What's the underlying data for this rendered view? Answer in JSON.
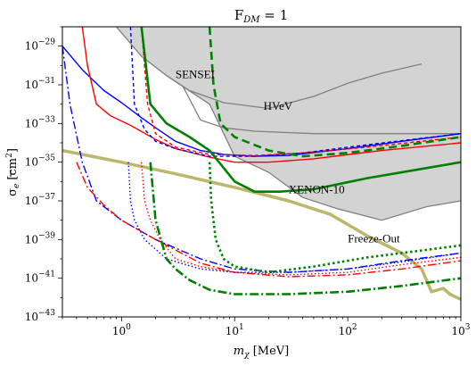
{
  "chart_data": {
    "type": "line",
    "title": "F_DM = 1",
    "title_parts": {
      "main": "F",
      "sub": "DM",
      "rest": " = 1"
    },
    "xlabel_parts": {
      "sym": "m",
      "sub": "χ",
      "unit": " [MeV]"
    },
    "ylabel_parts": {
      "sym": "σ",
      "sub": "e",
      "unit": " [cm",
      "sup": "2",
      "close": "]"
    },
    "x_scale": "log",
    "y_scale": "log",
    "xlim": [
      0.3,
      1000
    ],
    "ylim": [
      1e-43,
      1e-28
    ],
    "grid": false,
    "legend": "none",
    "x_ticks": [
      {
        "value": 1,
        "base": "10",
        "exp": "0"
      },
      {
        "value": 10,
        "base": "10",
        "exp": "1"
      },
      {
        "value": 100,
        "base": "10",
        "exp": "2"
      },
      {
        "value": 1000,
        "base": "10",
        "exp": "3"
      }
    ],
    "y_ticks": [
      {
        "value": 1e-29,
        "base": "10",
        "exp": "−29"
      },
      {
        "value": 1e-31,
        "base": "10",
        "exp": "−31"
      },
      {
        "value": 1e-33,
        "base": "10",
        "exp": "−33"
      },
      {
        "value": 1e-35,
        "base": "10",
        "exp": "−35"
      },
      {
        "value": 1e-37,
        "base": "10",
        "exp": "−37"
      },
      {
        "value": 1e-39,
        "base": "10",
        "exp": "−39"
      },
      {
        "value": 1e-41,
        "base": "10",
        "exp": "−41"
      },
      {
        "value": 1e-43,
        "base": "10",
        "exp": "−43"
      }
    ],
    "excluded_region": {
      "color": "#d3d3d3",
      "edge_color": "#808080",
      "boundary": [
        [
          0.9,
          1e-28
        ],
        [
          1.5,
          3e-30
        ],
        [
          2.5,
          3e-31
        ],
        [
          3.5,
          8e-32
        ],
        [
          6,
          1e-32
        ],
        [
          10,
          2e-35
        ],
        [
          20,
          3e-36
        ],
        [
          40,
          1.5e-37
        ],
        [
          80,
          4e-38
        ],
        [
          200,
          1e-38
        ],
        [
          500,
          5e-38
        ],
        [
          1000,
          1e-37
        ]
      ]
    },
    "experiment_curves": [
      {
        "name": "SENSEI",
        "color": "#808080",
        "points": [
          [
            2.5,
            3e-31
          ],
          [
            4,
            5e-32
          ],
          [
            8,
            1.2e-32
          ],
          [
            20,
            6e-33
          ],
          [
            50,
            2.5e-32
          ],
          [
            100,
            1.2e-31
          ],
          [
            200,
            4e-31
          ],
          [
            450,
            1.2e-30
          ]
        ]
      },
      {
        "name": "HVeV",
        "color": "#808080",
        "points": [
          [
            3.5,
            8e-32
          ],
          [
            5,
            1.5e-33
          ],
          [
            8,
            6e-34
          ],
          [
            15,
            4e-34
          ],
          [
            50,
            3e-34
          ],
          [
            200,
            3e-34
          ],
          [
            1000,
            3e-34
          ]
        ]
      }
    ],
    "annotations": [
      {
        "text": "SENSEI",
        "x": 3.0,
        "y": 2.2e-31
      },
      {
        "text": "HVeV",
        "x": 18,
        "y": 5e-33
      },
      {
        "text": "XENON-10",
        "x": 30,
        "y": 2.5e-37
      },
      {
        "text": "Freeze-Out",
        "x": 100,
        "y": 7e-40
      }
    ],
    "freeze_out": {
      "color": "#bdb76b",
      "points": [
        [
          0.3,
          4e-35
        ],
        [
          1,
          1e-35
        ],
        [
          3,
          2.5e-36
        ],
        [
          10,
          5e-37
        ],
        [
          30,
          1e-37
        ],
        [
          70,
          2e-38
        ],
        [
          150,
          1.5e-39
        ],
        [
          300,
          2e-40
        ],
        [
          450,
          3e-41
        ],
        [
          550,
          2e-42
        ],
        [
          700,
          3e-42
        ],
        [
          800,
          1.5e-42
        ],
        [
          1000,
          8e-43
        ]
      ]
    },
    "series": [
      {
        "name": "",
        "color": "#0000ff",
        "dash": "",
        "width": 1.4,
        "points": [
          [
            0.3,
            1e-29
          ],
          [
            0.45,
            6e-31
          ],
          [
            0.7,
            5e-32
          ],
          [
            1,
            1.2e-32
          ],
          [
            1.5,
            2e-33
          ],
          [
            2,
            6e-34
          ],
          [
            3,
            1.2e-34
          ],
          [
            5,
            4e-35
          ],
          [
            8,
            2.5e-35
          ],
          [
            15,
            2e-35
          ],
          [
            30,
            2.2e-35
          ],
          [
            100,
            5e-35
          ],
          [
            300,
            1.2e-34
          ],
          [
            1000,
            3e-34
          ]
        ]
      },
      {
        "name": "",
        "color": "#ff0000",
        "dash": "",
        "width": 1.4,
        "points": [
          [
            0.45,
            1e-28
          ],
          [
            0.5,
            1e-30
          ],
          [
            0.6,
            1e-32
          ],
          [
            0.8,
            2.5e-33
          ],
          [
            1.2,
            8e-34
          ],
          [
            2,
            1.5e-34
          ],
          [
            3,
            5e-35
          ],
          [
            6,
            1.8e-35
          ],
          [
            10,
            1e-35
          ],
          [
            20,
            1e-35
          ],
          [
            50,
            1.5e-35
          ],
          [
            200,
            4e-35
          ],
          [
            1000,
            1e-34
          ]
        ]
      },
      {
        "name": "",
        "color": "#0000ff",
        "dash": "4,3",
        "width": 1.4,
        "points": [
          [
            1.2,
            1e-28
          ],
          [
            1.3,
            1e-32
          ],
          [
            1.6,
            5e-34
          ],
          [
            2,
            1.2e-34
          ],
          [
            3,
            5e-35
          ],
          [
            6,
            2e-35
          ],
          [
            15,
            2e-35
          ],
          [
            40,
            3e-35
          ],
          [
            150,
            8e-35
          ],
          [
            1000,
            3e-34
          ]
        ]
      },
      {
        "name": "",
        "color": "#ff0000",
        "dash": "4,3",
        "width": 1.4,
        "points": [
          [
            1.5,
            1e-28
          ],
          [
            1.7,
            1e-32
          ],
          [
            2,
            3e-34
          ],
          [
            3,
            6e-35
          ],
          [
            6,
            2.5e-35
          ],
          [
            15,
            2.2e-35
          ],
          [
            40,
            3e-35
          ],
          [
            150,
            6e-35
          ],
          [
            1000,
            2e-34
          ]
        ]
      },
      {
        "name": "",
        "color": "#008000",
        "dash": "",
        "width": 2.6,
        "points": [
          [
            1.5,
            1e-28
          ],
          [
            1.8,
            1e-32
          ],
          [
            2.5,
            1e-33
          ],
          [
            4,
            2e-34
          ],
          [
            6,
            4e-35
          ],
          [
            10,
            1e-36
          ],
          [
            15,
            3e-37
          ],
          [
            25,
            3e-37
          ],
          [
            50,
            4e-37
          ],
          [
            150,
            1.5e-36
          ],
          [
            400,
            4e-36
          ],
          [
            1000,
            1e-35
          ]
        ]
      },
      {
        "name": "",
        "color": "#008000",
        "dash": "9,5",
        "width": 2.6,
        "points": [
          [
            6,
            1e-28
          ],
          [
            6.5,
            1e-31
          ],
          [
            7.5,
            1e-33
          ],
          [
            10,
            2e-34
          ],
          [
            20,
            4e-35
          ],
          [
            40,
            2e-35
          ],
          [
            100,
            3e-35
          ],
          [
            300,
            7e-35
          ],
          [
            1000,
            2e-34
          ]
        ]
      },
      {
        "name": "",
        "color": "#0000ff",
        "dash": "9,3,2,3",
        "width": 1.4,
        "points": [
          [
            0.3,
            1e-29
          ],
          [
            0.35,
            1e-32
          ],
          [
            0.45,
            1e-35
          ],
          [
            0.6,
            1e-37
          ],
          [
            1,
            1e-38
          ],
          [
            2,
            1e-39
          ],
          [
            5,
            1e-40
          ],
          [
            10,
            3e-41
          ],
          [
            30,
            2e-41
          ],
          [
            100,
            3e-41
          ],
          [
            300,
            8e-41
          ],
          [
            1000,
            2e-40
          ]
        ]
      },
      {
        "name": "",
        "color": "#ff0000",
        "dash": "9,3,2,3",
        "width": 1.4,
        "points": [
          [
            0.4,
            1e-35
          ],
          [
            0.5,
            5e-37
          ],
          [
            0.7,
            6e-38
          ],
          [
            1,
            1e-38
          ],
          [
            2,
            1e-39
          ],
          [
            5,
            6e-41
          ],
          [
            10,
            2e-41
          ],
          [
            30,
            1.2e-41
          ],
          [
            100,
            1.5e-41
          ],
          [
            300,
            3e-41
          ],
          [
            1000,
            8e-41
          ]
        ]
      },
      {
        "name": "",
        "color": "#0000ff",
        "dash": "1.5,2.5",
        "width": 1.4,
        "points": [
          [
            1.15,
            1e-35
          ],
          [
            1.2,
            1e-37
          ],
          [
            1.3,
            1e-38
          ],
          [
            1.6,
            1e-39
          ],
          [
            2.5,
            1e-40
          ],
          [
            5,
            3e-41
          ],
          [
            10,
            2e-41
          ],
          [
            30,
            2e-41
          ],
          [
            100,
            3e-41
          ],
          [
            300,
            7e-41
          ],
          [
            1000,
            2e-40
          ]
        ]
      },
      {
        "name": "",
        "color": "#ff0000",
        "dash": "1.5,2.5",
        "width": 1.4,
        "points": [
          [
            1.5,
            1e-35
          ],
          [
            1.6,
            1e-37
          ],
          [
            1.8,
            1e-38
          ],
          [
            2.2,
            1e-39
          ],
          [
            3,
            1e-40
          ],
          [
            5,
            4e-41
          ],
          [
            10,
            2e-41
          ],
          [
            30,
            1.5e-41
          ],
          [
            100,
            2e-41
          ],
          [
            300,
            5e-41
          ],
          [
            1000,
            1.2e-40
          ]
        ]
      },
      {
        "name": "",
        "color": "#008000",
        "dash": "2.5,3",
        "width": 2.6,
        "points": [
          [
            6,
            1e-35
          ],
          [
            6.2,
            1e-37
          ],
          [
            6.8,
            1e-39
          ],
          [
            8,
            1e-40
          ],
          [
            10,
            4e-41
          ],
          [
            20,
            2e-41
          ],
          [
            50,
            4e-41
          ],
          [
            150,
            1.2e-40
          ],
          [
            400,
            2.5e-40
          ],
          [
            1000,
            5e-40
          ]
        ]
      },
      {
        "name": "",
        "color": "#008000",
        "dash": "10,3,2,3",
        "width": 2.6,
        "points": [
          [
            1.8,
            1e-35
          ],
          [
            2,
            1e-38
          ],
          [
            2.5,
            1e-40
          ],
          [
            3,
            3e-41
          ],
          [
            4,
            8e-42
          ],
          [
            6,
            2.5e-42
          ],
          [
            10,
            1.5e-42
          ],
          [
            30,
            1.5e-42
          ],
          [
            100,
            2e-42
          ],
          [
            300,
            4e-42
          ],
          [
            1000,
            1e-41
          ]
        ]
      }
    ]
  }
}
